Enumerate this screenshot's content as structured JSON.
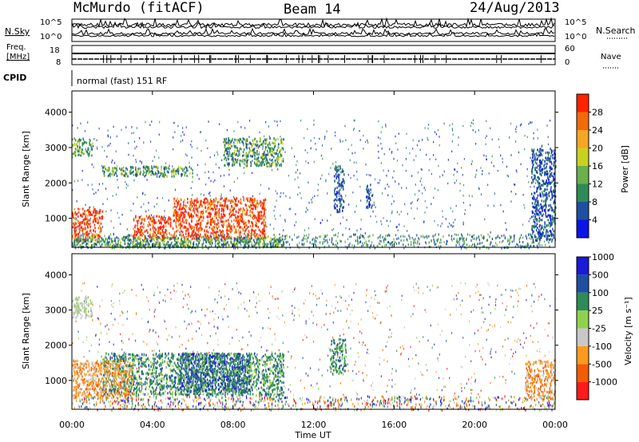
{
  "header": {
    "station": "McMurdo (fitACF)",
    "beam": "Beam 14",
    "date": "24/Aug/2013"
  },
  "top_panels": {
    "nsky_label": "N.Sky",
    "nsearch_label": "N.Search",
    "nsky_ticks": [
      "10^5",
      "10^0"
    ],
    "nsearch_ticks": [
      "10^5",
      "10^0"
    ],
    "freq_label_1": "Freq.",
    "freq_label_2": "[MHz]",
    "freq_ticks": [
      "18",
      "8"
    ],
    "nave_label": "Nave",
    "nave_ticks": [
      "60",
      "0"
    ],
    "cpid_label": "CPID",
    "cpid_value": "normal (fast) 151 RF"
  },
  "colors": {
    "power_scale": [
      "#0a14e6",
      "#1e4fa0",
      "#2e8b57",
      "#6ab04c",
      "#c8d21e",
      "#f5a623",
      "#f26a0c",
      "#ff2200"
    ],
    "velocity_scale": [
      "#ff1a1a",
      "#f25c05",
      "#ff9a1a",
      "#c8c8c8",
      "#8fd14f",
      "#2e8b57",
      "#1e4fa0",
      "#1a1ad9"
    ]
  },
  "chart_data": [
    {
      "type": "heatmap",
      "name": "power",
      "xlabel": "",
      "ylabel": "Slant Range [km]",
      "y_ticks": [
        "1000",
        "2000",
        "3000",
        "4000"
      ],
      "ylim": [
        180,
        4600
      ],
      "xlim_hours": [
        0,
        24
      ],
      "colorbar_label": "Power [dB]",
      "colorbar_ticks": [
        "4",
        "8",
        "12",
        "16",
        "20",
        "24",
        "28"
      ],
      "features": [
        {
          "t0": 5.0,
          "t1": 9.6,
          "r0": 450,
          "r1": 1600,
          "level": "high"
        },
        {
          "t0": 0.0,
          "t1": 1.5,
          "r0": 400,
          "r1": 1300,
          "level": "high"
        },
        {
          "t0": 3.0,
          "t1": 5.0,
          "r0": 450,
          "r1": 1100,
          "level": "high"
        },
        {
          "t0": 0.0,
          "t1": 10.5,
          "r0": 200,
          "r1": 500,
          "level": "mid"
        },
        {
          "t0": 1.5,
          "t1": 6.0,
          "r0": 2200,
          "r1": 2500,
          "level": "mid"
        },
        {
          "t0": 7.5,
          "t1": 10.5,
          "r0": 2500,
          "r1": 3300,
          "level": "mid"
        },
        {
          "t0": 0.0,
          "t1": 1.0,
          "r0": 2800,
          "r1": 3300,
          "level": "mid"
        },
        {
          "t0": 13.0,
          "t1": 13.5,
          "r0": 1200,
          "r1": 2500,
          "level": "low"
        },
        {
          "t0": 14.6,
          "t1": 14.9,
          "r0": 1300,
          "r1": 2000,
          "level": "low"
        },
        {
          "t0": 22.8,
          "t1": 24.0,
          "r0": 400,
          "r1": 3000,
          "level": "low"
        }
      ]
    },
    {
      "type": "heatmap",
      "name": "velocity",
      "xlabel": "Time UT",
      "ylabel": "Slant Range [km]",
      "x_ticks": [
        "00:00",
        "04:00",
        "08:00",
        "12:00",
        "16:00",
        "20:00",
        "00:00"
      ],
      "y_ticks": [
        "1000",
        "2000",
        "3000",
        "4000"
      ],
      "ylim": [
        180,
        4600
      ],
      "xlim_hours": [
        0,
        24
      ],
      "colorbar_label": "Velocity [m s⁻¹]",
      "colorbar_ticks": [
        "-1000",
        "-500",
        "-100",
        "-25",
        "25",
        "100",
        "500",
        "1000"
      ],
      "features": [
        {
          "t0": 5.2,
          "t1": 8.8,
          "r0": 700,
          "r1": 1800,
          "level": "pos_high"
        },
        {
          "t0": 1.5,
          "t1": 10.5,
          "r0": 600,
          "r1": 1800,
          "level": "pos_mid"
        },
        {
          "t0": 0.0,
          "t1": 1.0,
          "r0": 2800,
          "r1": 3400,
          "level": "near_zero"
        },
        {
          "t0": 0.0,
          "t1": 3.0,
          "r0": 500,
          "r1": 1600,
          "level": "neg_mid"
        },
        {
          "t0": 22.5,
          "t1": 24.0,
          "r0": 500,
          "r1": 1600,
          "level": "neg_mid"
        },
        {
          "t0": 12.8,
          "t1": 13.6,
          "r0": 1200,
          "r1": 2200,
          "level": "pos_mid"
        }
      ]
    }
  ]
}
